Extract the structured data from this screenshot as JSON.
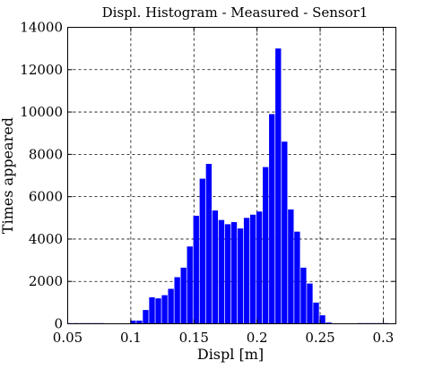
{
  "chart_data": {
    "type": "bar",
    "title": "Displ. Histogram - Measured - Sensor1",
    "xlabel": "Displ [m]",
    "ylabel": "Times appeared",
    "xlim": [
      0.05,
      0.31
    ],
    "ylim": [
      0,
      14000
    ],
    "xticks": [
      "0.05",
      "0.1",
      "0.15",
      "0.2",
      "0.25",
      "0.3"
    ],
    "xtick_values": [
      0.05,
      0.1,
      0.15,
      0.2,
      0.25,
      0.3
    ],
    "yticks": [
      "0",
      "2000",
      "4000",
      "6000",
      "8000",
      "10000",
      "12000",
      "14000"
    ],
    "ytick_values": [
      0,
      2000,
      4000,
      6000,
      8000,
      10000,
      12000,
      14000
    ],
    "grid": true,
    "bar_color": "#0000ff",
    "bar_width": 0.0045,
    "x": [
      0.05,
      0.055,
      0.06,
      0.065,
      0.07,
      0.075,
      0.1,
      0.105,
      0.11,
      0.115,
      0.12,
      0.125,
      0.13,
      0.135,
      0.14,
      0.145,
      0.15,
      0.155,
      0.16,
      0.165,
      0.17,
      0.175,
      0.18,
      0.185,
      0.19,
      0.195,
      0.2,
      0.205,
      0.21,
      0.215,
      0.22,
      0.225,
      0.23,
      0.235,
      0.24,
      0.245,
      0.25,
      0.255,
      0.28,
      0.285,
      0.29,
      0.295,
      0.3
    ],
    "values": [
      30,
      30,
      30,
      30,
      30,
      30,
      150,
      150,
      650,
      1250,
      1200,
      1350,
      1650,
      2200,
      2650,
      3650,
      5100,
      6850,
      7550,
      5350,
      4900,
      4700,
      4800,
      4500,
      5000,
      5150,
      5300,
      7400,
      9900,
      13000,
      8600,
      5400,
      4350,
      2650,
      1900,
      1000,
      400,
      60,
      30,
      30,
      30,
      30,
      30
    ]
  }
}
